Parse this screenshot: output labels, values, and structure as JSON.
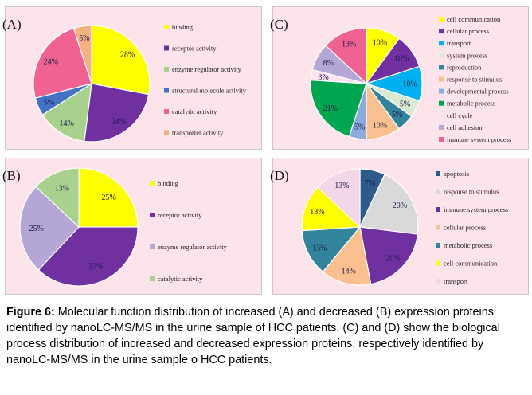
{
  "background_color": "#fde3ea",
  "caption": {
    "figure_label": "Figure 6:",
    "text": " Molecular function distribution of increased (A) and decreased (B) expression proteins identified by nanoLC-MS/MS in the urine sample of HCC patients. (C) and (D) show the biological process distribution of increased and decreased expression proteins, respectively identified by nanoLC-MS/MS in the urine sample o HCC patients."
  },
  "chart_data": [
    {
      "id": "A",
      "panel_label": "(A)",
      "type": "pie",
      "categories": [
        "binding",
        "receptor activity",
        "enzyme regulator activity",
        "structural molecule activity",
        "catalytic activity",
        "transporter activity"
      ],
      "values": [
        28,
        24,
        14,
        5,
        24,
        5
      ],
      "labels": [
        "28%",
        "24%",
        "14%",
        "5%",
        "24%",
        "5%"
      ],
      "colors": [
        "#ffff00",
        "#7030a0",
        "#a9d18e",
        "#4472c4",
        "#f06292",
        "#f4b183"
      ],
      "legend": "right"
    },
    {
      "id": "B",
      "panel_label": "(B)",
      "type": "pie",
      "categories": [
        "binding",
        "receptor activity",
        "enzyme regulator activity",
        "catalytic activity"
      ],
      "values": [
        25,
        37,
        25,
        13
      ],
      "labels": [
        "25%",
        "37%",
        "25%",
        "13%"
      ],
      "colors": [
        "#ffff00",
        "#7030a0",
        "#b4a7d6",
        "#a9d18e"
      ],
      "legend": "right"
    },
    {
      "id": "C",
      "panel_label": "(C)",
      "type": "pie",
      "categories": [
        "cell communication",
        "cellular process",
        "transport",
        "system process",
        "reproduction",
        "response to stimulus",
        "developmental process",
        "metabolic process",
        "cell cycle",
        "cell adhesion",
        "immune system process"
      ],
      "values": [
        10,
        10,
        10,
        5,
        5,
        10,
        5,
        21,
        3,
        8,
        13
      ],
      "labels": [
        "10%",
        "10%",
        "10%",
        "5%",
        "5%",
        "10%",
        "5%",
        "21%",
        "3%",
        "8%",
        "13%"
      ],
      "colors": [
        "#ffff00",
        "#7030a0",
        "#00b0f0",
        "#d9ead3",
        "#31849b",
        "#fac090",
        "#8ea9db",
        "#00a550",
        "#fbe4f0",
        "#b4a7d6",
        "#f06292"
      ],
      "legend": "right"
    },
    {
      "id": "D",
      "panel_label": "(D)",
      "type": "pie",
      "categories": [
        "apoptosis",
        "response to stimulus",
        "immune system process",
        "cellular process",
        "metabolic process",
        "cell communication",
        "transport"
      ],
      "values": [
        7,
        20,
        20,
        14,
        13,
        13,
        13
      ],
      "labels": [
        "7%",
        "20%",
        "20%",
        "14%",
        "13%",
        "13%",
        "13%"
      ],
      "colors": [
        "#2e5c8a",
        "#d9d9d9",
        "#7030a0",
        "#fac090",
        "#31849b",
        "#ffff00",
        "#f3d6e8"
      ],
      "legend": "right"
    }
  ]
}
